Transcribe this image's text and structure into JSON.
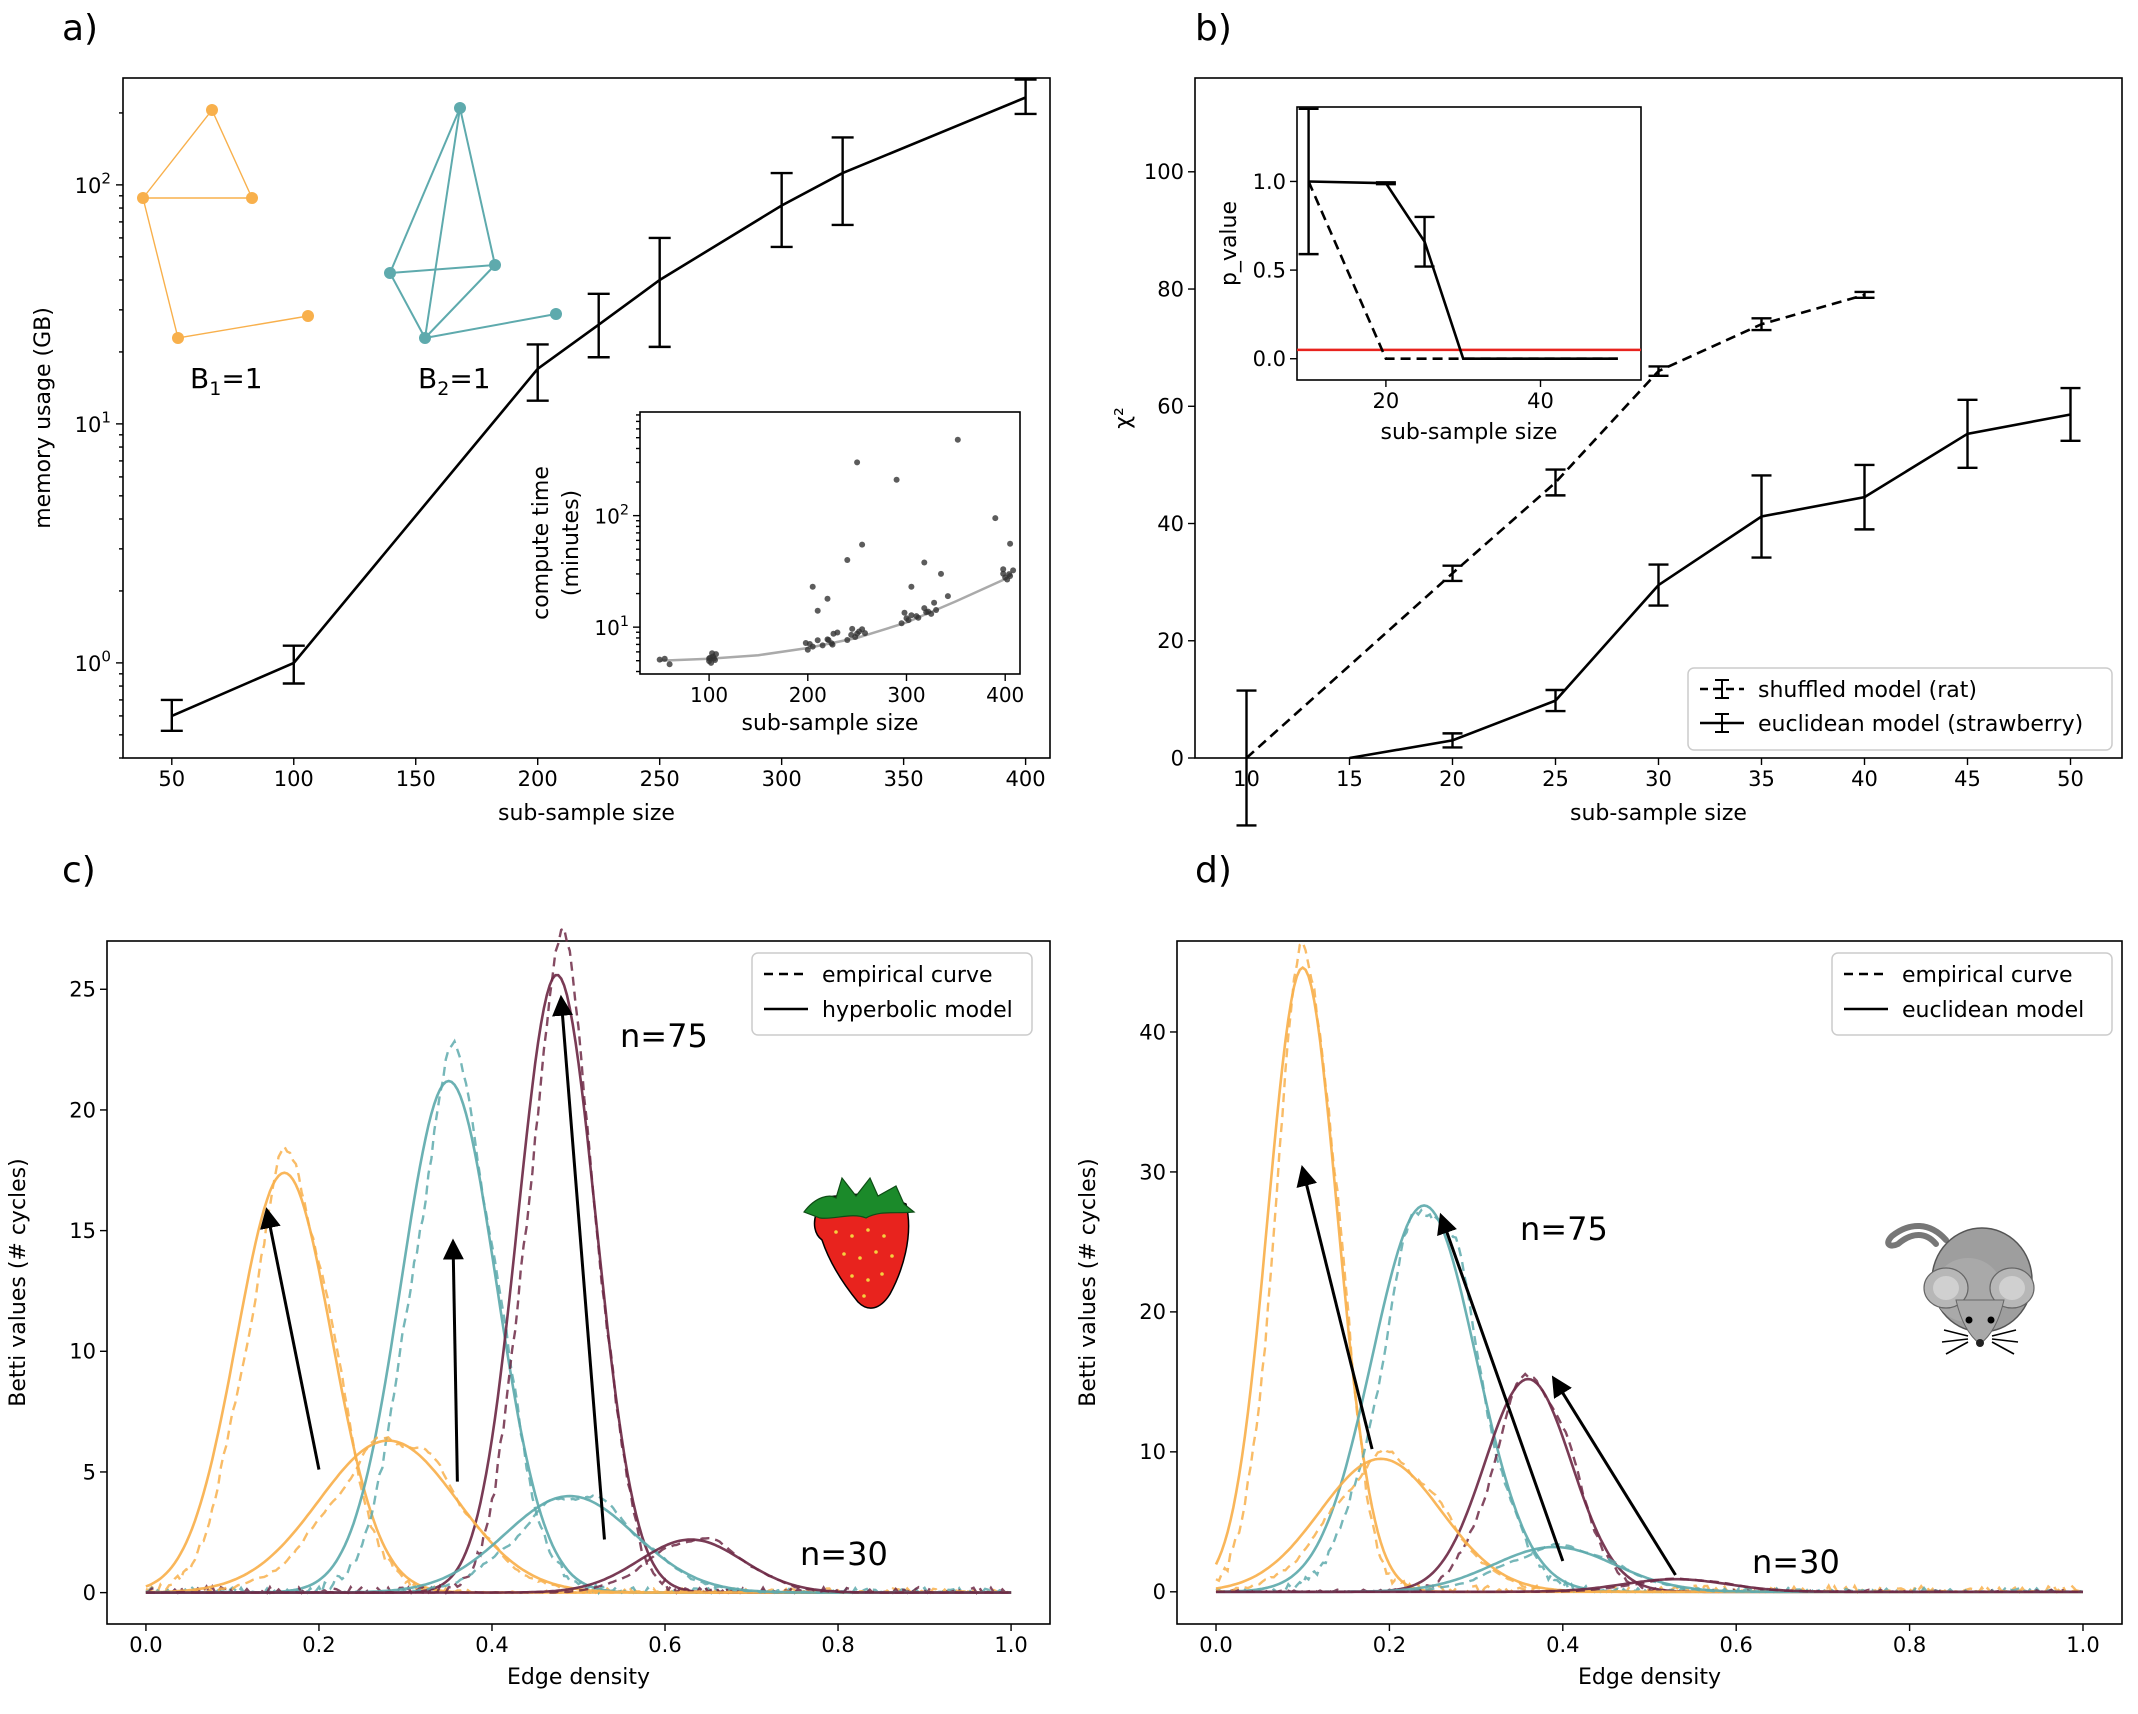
{
  "colors": {
    "orange": "#f8b04c",
    "teal": "#5eaaad",
    "maroon": "#6e2a47",
    "red": "#e8231e",
    "black": "#000000",
    "gray": "#aaaaaa"
  },
  "chart_data": [
    {
      "id": "a",
      "panel_label": "a)",
      "type": "line",
      "xlabel": "sub-sample size",
      "ylabel": "memory usage (GB)",
      "yscale": "log",
      "xlim": [
        30,
        410
      ],
      "ylim": [
        0.4,
        280
      ],
      "xticks": [
        50,
        100,
        150,
        200,
        250,
        300,
        350,
        400
      ],
      "xtick_labels": [
        "50",
        "100",
        "150",
        "200",
        "250",
        "300",
        "350",
        "400"
      ],
      "yticks": [
        1,
        10,
        100
      ],
      "ytick_labels": [
        "10^0",
        "10^1",
        "10^2"
      ],
      "x": [
        50,
        100,
        200,
        225,
        250,
        300,
        325,
        400
      ],
      "values": [
        0.6,
        1.0,
        17,
        26,
        40,
        82,
        112,
        232
      ],
      "err_low": [
        0.52,
        0.82,
        12.5,
        19,
        21,
        55,
        68,
        198
      ],
      "err_high": [
        0.7,
        1.18,
        21.5,
        35,
        60,
        112,
        158,
        276
      ],
      "annotations": [
        {
          "sym": "B",
          "sub": "1",
          "eq": "=1"
        },
        {
          "sym": "B",
          "sub": "2",
          "eq": "=1"
        }
      ],
      "inset": {
        "type": "scatter",
        "xlabel": "sub-sample size",
        "ylabel_line1": "compute time",
        "ylabel_line2": "(minutes)",
        "yscale": "log",
        "xlim": [
          30,
          415
        ],
        "ylim": [
          3.8,
          850
        ],
        "xticks": [
          100,
          200,
          300,
          400
        ],
        "xtick_labels": [
          "100",
          "200",
          "300",
          "400"
        ],
        "yticks": [
          10,
          100
        ],
        "ytick_labels": [
          "10^1",
          "10^2"
        ],
        "trend": {
          "x": [
            50,
            100,
            150,
            200,
            250,
            300,
            350,
            400
          ],
          "y": [
            5,
            5.2,
            5.6,
            6.5,
            8,
            11,
            17,
            27
          ]
        }
      }
    },
    {
      "id": "b",
      "panel_label": "b)",
      "type": "line",
      "xlabel": "sub-sample size",
      "ylabel": "χ²",
      "xlim": [
        7.5,
        52.5
      ],
      "ylim": [
        0,
        116
      ],
      "xticks": [
        10,
        15,
        20,
        25,
        30,
        35,
        40,
        45,
        50
      ],
      "yticks": [
        0,
        20,
        40,
        60,
        80,
        100
      ],
      "series": [
        {
          "name": "shuffled model (rat)",
          "style": "dashed",
          "x": [
            10,
            20,
            25,
            30,
            35,
            40
          ],
          "values": [
            0,
            31.5,
            47,
            66,
            74,
            79
          ],
          "err": [
            11.5,
            1.3,
            2.2,
            0.8,
            1.0,
            0.5
          ]
        },
        {
          "name": "euclidean model (strawberry)",
          "style": "solid",
          "x": [
            15,
            20,
            25,
            30,
            35,
            40,
            45,
            50
          ],
          "values": [
            0,
            3,
            9.8,
            29.5,
            41.2,
            44.5,
            55.3,
            58.6
          ],
          "err": [
            0,
            1.2,
            1.8,
            3.5,
            7,
            5.5,
            5.8,
            4.5
          ]
        }
      ],
      "inset": {
        "xlabel": "sub-sample size",
        "ylabel": "p_value",
        "xlim": [
          8.5,
          53
        ],
        "ylim": [
          -0.12,
          1.42
        ],
        "xticks": [
          20,
          40
        ],
        "yticks": [
          0,
          0.5,
          1
        ],
        "ytick_labels": [
          "0.0",
          "0.5",
          "1.0"
        ],
        "threshold": 0.05,
        "series": [
          {
            "name": "shuffled",
            "style": "dashed",
            "x": [
              10,
              20,
              30,
              50
            ],
            "values": [
              1.0,
              0,
              0,
              0
            ],
            "err": [
              0,
              0,
              0,
              0
            ]
          },
          {
            "name": "euclidean",
            "style": "solid",
            "x": [
              10,
              20,
              25,
              30,
              50
            ],
            "values": [
              1.0,
              0.99,
              0.66,
              0,
              0
            ],
            "err": [
              0.41,
              0.005,
              0.14,
              0,
              0
            ]
          }
        ]
      }
    },
    {
      "id": "c",
      "panel_label": "c)",
      "type": "line",
      "xlabel": "Edge density",
      "ylabel": "Betti values (# cycles)",
      "xlim": [
        -0.045,
        1.045
      ],
      "ylim": [
        -1.3,
        27
      ],
      "xticks": [
        0,
        0.2,
        0.4,
        0.6,
        0.8,
        1.0
      ],
      "xtick_labels": [
        "0.0",
        "0.2",
        "0.4",
        "0.6",
        "0.8",
        "1.0"
      ],
      "yticks": [
        0,
        5,
        10,
        15,
        20,
        25
      ],
      "legend": [
        "empirical curve",
        "hyperbolic model"
      ],
      "label_n75": "n=75",
      "label_n30": "n=30",
      "peaks": [
        {
          "color": "orange",
          "mu": 0.16,
          "sigma": 0.055,
          "amp": 17.4,
          "alpha": 1.0
        },
        {
          "color": "teal",
          "mu": 0.35,
          "sigma": 0.055,
          "amp": 21.2,
          "alpha": 1.0
        },
        {
          "color": "maroon",
          "mu": 0.475,
          "sigma": 0.045,
          "amp": 25.6,
          "alpha": 1.0
        },
        {
          "color": "orange",
          "mu": 0.28,
          "sigma": 0.08,
          "amp": 6.3,
          "alpha": 1.0
        },
        {
          "color": "teal",
          "mu": 0.49,
          "sigma": 0.075,
          "amp": 4.0,
          "alpha": 1.0
        },
        {
          "color": "maroon",
          "mu": 0.63,
          "sigma": 0.06,
          "amp": 2.2,
          "alpha": 1.0
        }
      ],
      "arrows": [
        {
          "from": [
            0.2,
            5.1
          ],
          "to": [
            0.14,
            15.8
          ]
        },
        {
          "from": [
            0.36,
            4.6
          ],
          "to": [
            0.355,
            14.5
          ]
        },
        {
          "from": [
            0.53,
            2.2
          ],
          "to": [
            0.48,
            24.6
          ]
        }
      ]
    },
    {
      "id": "d",
      "panel_label": "d)",
      "type": "line",
      "xlabel": "Edge density",
      "ylabel": "Betti values (# cycles)",
      "xlim": [
        -0.045,
        1.045
      ],
      "ylim": [
        -2.3,
        46.5
      ],
      "xticks": [
        0,
        0.2,
        0.4,
        0.6,
        0.8,
        1.0
      ],
      "xtick_labels": [
        "0.0",
        "0.2",
        "0.4",
        "0.6",
        "0.8",
        "1.0"
      ],
      "yticks": [
        0,
        10,
        20,
        30,
        40
      ],
      "legend": [
        "empirical curve",
        "euclidean model"
      ],
      "label_n75": "n=75",
      "label_n30": "n=30",
      "peaks": [
        {
          "color": "orange",
          "mu": 0.1,
          "sigma": 0.04,
          "amp": 44.6,
          "alpha": 1.0
        },
        {
          "color": "teal",
          "mu": 0.24,
          "sigma": 0.06,
          "amp": 27.6,
          "alpha": 1.0
        },
        {
          "color": "maroon",
          "mu": 0.36,
          "sigma": 0.05,
          "amp": 15.2,
          "alpha": 1.0
        },
        {
          "color": "orange",
          "mu": 0.19,
          "sigma": 0.07,
          "amp": 9.5,
          "alpha": 1.0
        },
        {
          "color": "teal",
          "mu": 0.39,
          "sigma": 0.07,
          "amp": 3.2,
          "alpha": 1.0
        },
        {
          "color": "maroon",
          "mu": 0.53,
          "sigma": 0.06,
          "amp": 0.9,
          "alpha": 1.0
        }
      ],
      "arrows": [
        {
          "from": [
            0.18,
            10.2
          ],
          "to": [
            0.1,
            30.2
          ]
        },
        {
          "from": [
            0.4,
            2.2
          ],
          "to": [
            0.26,
            26.8
          ]
        },
        {
          "from": [
            0.53,
            1.2
          ],
          "to": [
            0.39,
            15.2
          ]
        }
      ]
    }
  ]
}
